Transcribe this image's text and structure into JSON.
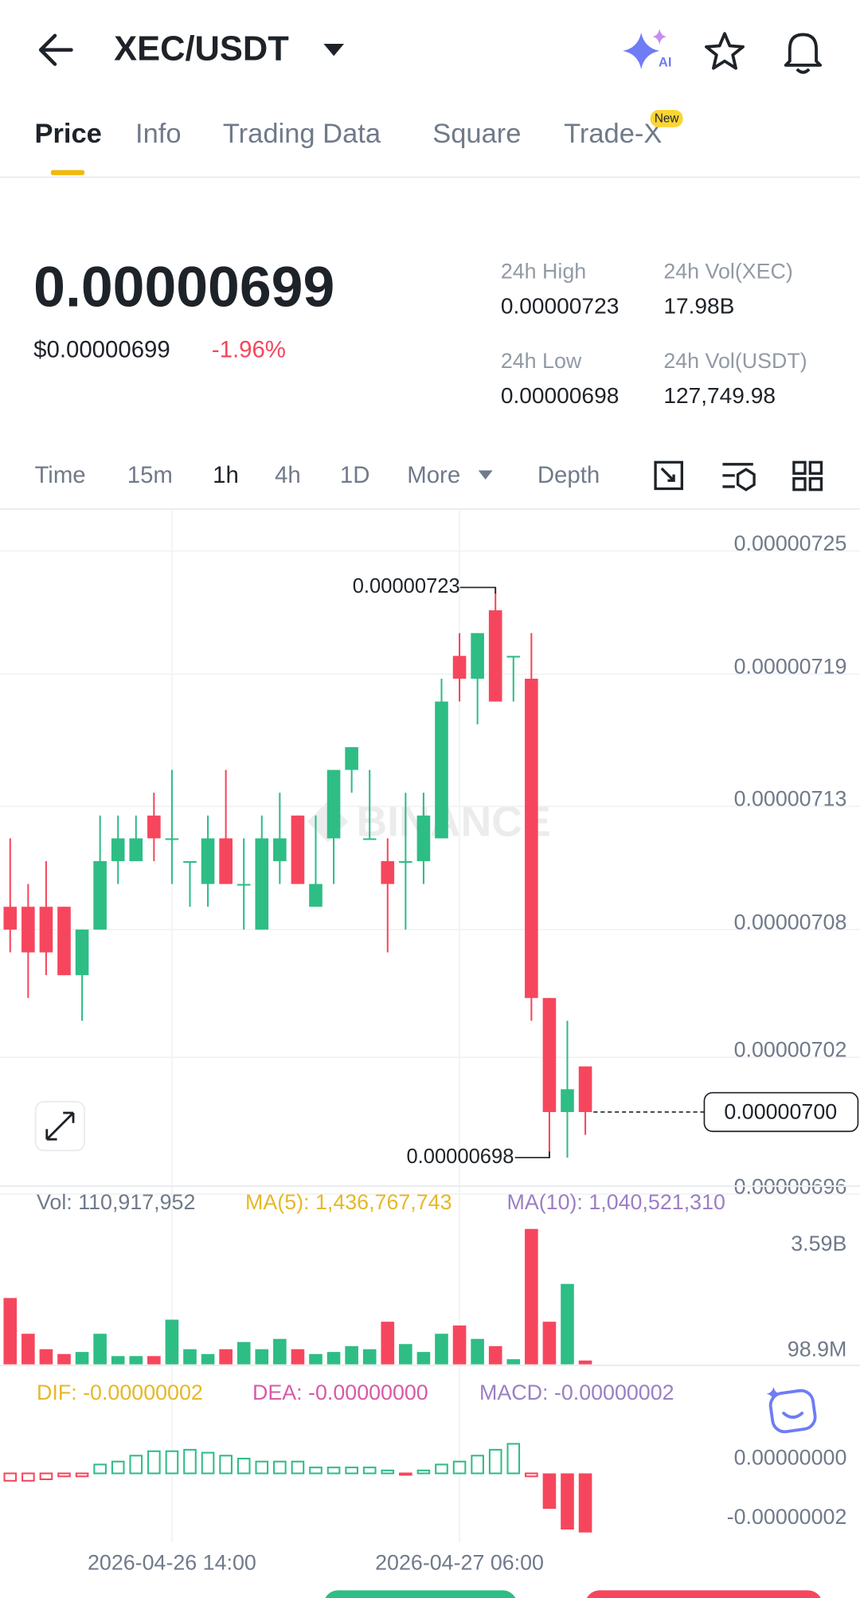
{
  "header": {
    "pair": "XEC/USDT",
    "ai": "AI"
  },
  "tabs": [
    "Price",
    "Info",
    "Trading Data",
    "Square",
    "Trade-X"
  ],
  "new_badge": "New",
  "ticker": {
    "price": "0.00000699",
    "usd": "$0.00000699",
    "change": "-1.96%",
    "stats": [
      {
        "label": "24h High",
        "value": "0.00000723"
      },
      {
        "label": "24h Vol(XEC)",
        "value": "17.98B"
      },
      {
        "label": "24h Low",
        "value": "0.00000698"
      },
      {
        "label": "24h Vol(USDT)",
        "value": "127,749.98"
      }
    ]
  },
  "intervals": [
    "Time",
    "15m",
    "1h",
    "4h",
    "1D",
    "More"
  ],
  "depth": "Depth",
  "watermark": "BINANCE",
  "volume_legend": [
    "Vol: 110,917,952",
    "MA(5): 1,436,767,743",
    "MA(10): 1,040,521,310"
  ],
  "macd_legend": [
    "DIF: -0.00000002",
    "DEA: -0.00000000",
    "MACD: -0.00000002"
  ],
  "chart_data": [
    {
      "type": "candlestick",
      "up_color": "#2ebd85",
      "down_color": "#f6465d",
      "categories": [
        null,
        null,
        null,
        null,
        null,
        null,
        null,
        null,
        null,
        "2026-04-26 14:00",
        null,
        null,
        null,
        null,
        null,
        null,
        null,
        null,
        null,
        null,
        null,
        null,
        null,
        null,
        null,
        "2026-04-27 06:00",
        null,
        null,
        null,
        null,
        null,
        null,
        null
      ],
      "open": [
        7.09e-06,
        7.09e-06,
        7.09e-06,
        7.09e-06,
        7.06e-06,
        7.08e-06,
        7.11e-06,
        7.11e-06,
        7.13e-06,
        7.12e-06,
        7.11e-06,
        7.1e-06,
        7.12e-06,
        7.1e-06,
        7.08e-06,
        7.11e-06,
        7.13e-06,
        7.09e-06,
        7.12e-06,
        7.15e-06,
        7.12e-06,
        7.11e-06,
        7.11e-06,
        7.11e-06,
        7.12e-06,
        7.2e-06,
        7.19e-06,
        7.22e-06,
        7.2e-06,
        7.19e-06,
        7.05e-06,
        7e-06,
        7.02e-06
      ],
      "high": [
        7.12e-06,
        7.1e-06,
        7.11e-06,
        7.09e-06,
        7.08e-06,
        7.13e-06,
        7.13e-06,
        7.13e-06,
        7.14e-06,
        7.15e-06,
        7.11e-06,
        7.13e-06,
        7.15e-06,
        7.12e-06,
        7.13e-06,
        7.14e-06,
        7.13e-06,
        7.13e-06,
        7.15e-06,
        7.16e-06,
        7.15e-06,
        7.12e-06,
        7.14e-06,
        7.14e-06,
        7.19e-06,
        7.21e-06,
        7.21e-06,
        7.23e-06,
        7.2e-06,
        7.21e-06,
        7.05e-06,
        7.04e-06,
        7.02e-06
      ],
      "low": [
        7.07e-06,
        7.05e-06,
        7.06e-06,
        7.06e-06,
        7.04e-06,
        7.08e-06,
        7.1e-06,
        7.11e-06,
        7.11e-06,
        7.1e-06,
        7.09e-06,
        7.09e-06,
        7.1e-06,
        7.08e-06,
        7.08e-06,
        7.1e-06,
        7.1e-06,
        7.09e-06,
        7.1e-06,
        7.14e-06,
        7.12e-06,
        7.07e-06,
        7.08e-06,
        7.1e-06,
        7.12e-06,
        7.18e-06,
        7.17e-06,
        7.18e-06,
        7.18e-06,
        7.04e-06,
        6.98e-06,
        6.98e-06,
        6.99e-06
      ],
      "close": [
        7.08e-06,
        7.07e-06,
        7.07e-06,
        7.06e-06,
        7.08e-06,
        7.11e-06,
        7.12e-06,
        7.12e-06,
        7.12e-06,
        7.12e-06,
        7.11e-06,
        7.12e-06,
        7.1e-06,
        7.1e-06,
        7.12e-06,
        7.12e-06,
        7.1e-06,
        7.1e-06,
        7.15e-06,
        7.16e-06,
        7.12e-06,
        7.1e-06,
        7.11e-06,
        7.13e-06,
        7.18e-06,
        7.19e-06,
        7.21e-06,
        7.18e-06,
        7.2e-06,
        7.05e-06,
        7e-06,
        7.01e-06,
        7e-06
      ],
      "ylim": [
        6.955e-06,
        7.26e-06
      ],
      "yticks": [
        {
          "value": 7.246e-06,
          "label": "0.00000725"
        },
        {
          "value": 7.192e-06,
          "label": "0.00000719"
        },
        {
          "value": 7.134e-06,
          "label": "0.00000713"
        },
        {
          "value": 7.08e-06,
          "label": "0.00000708"
        },
        {
          "value": 7.024e-06,
          "label": "0.00000702"
        },
        {
          "value": 6.964e-06,
          "label": "0.00000696"
        }
      ],
      "high_mark": {
        "value": 7.23e-06,
        "label": "0.00000723"
      },
      "low_mark": {
        "value": 6.98e-06,
        "label": "0.00000698"
      },
      "current": {
        "value": 7e-06,
        "label": "0.00000700"
      }
    },
    {
      "type": "bar",
      "values": [
        1930000000,
        890000000,
        440000000,
        300000000,
        360000000,
        890000000,
        240000000,
        240000000,
        240000000,
        1300000000,
        440000000,
        300000000,
        440000000,
        650000000,
        440000000,
        740000000,
        440000000,
        300000000,
        360000000,
        530000000,
        440000000,
        1240000000,
        590000000,
        360000000,
        890000000,
        1130000000,
        740000000,
        530000000,
        150000000,
        3940000000,
        1240000000,
        2340000000,
        110917952
      ],
      "ylim": [
        0,
        4000000000
      ],
      "yticks": [
        {
          "value": 3590000000,
          "label": "3.59B"
        },
        {
          "value": 98900000,
          "label": "98.9M"
        }
      ]
    },
    {
      "type": "bar",
      "up_color": "#2ebd85",
      "down_color": "#f6465d",
      "values": [
        -2.5e-09,
        -2.5e-09,
        -2e-09,
        -1e-09,
        -1e-09,
        3e-09,
        4e-09,
        6e-09,
        7.5e-09,
        7.5e-09,
        8e-09,
        7e-09,
        6e-09,
        5e-09,
        4e-09,
        4e-09,
        4e-09,
        2e-09,
        2e-09,
        2e-09,
        2e-09,
        1e-09,
        -5e-10,
        1e-09,
        3e-09,
        4e-09,
        6e-09,
        8e-09,
        1e-08,
        -1e-09,
        -1.2e-08,
        -1.9e-08,
        -2e-08
      ],
      "ylim": [
        -2.34e-08,
        2.14e-08
      ],
      "yticks": [
        {
          "value": 0,
          "label": "0.00000000"
        },
        {
          "value": -2e-08,
          "label": "-0.00000002"
        }
      ]
    }
  ]
}
